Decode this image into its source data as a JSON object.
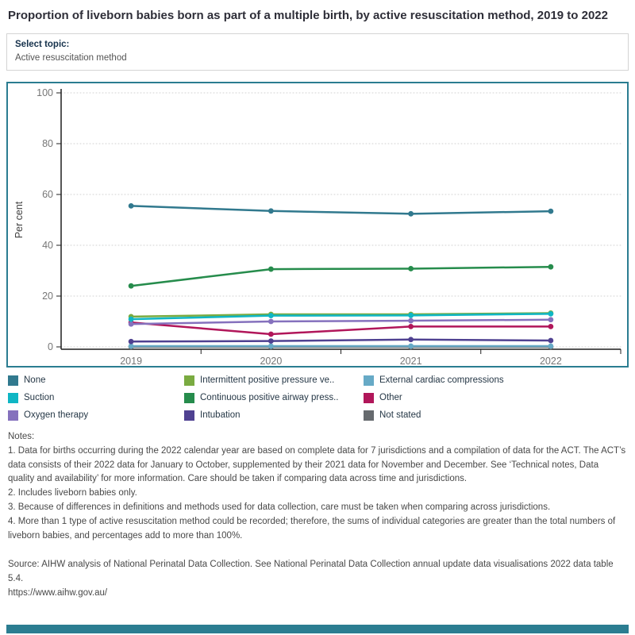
{
  "header": {
    "title": "Proportion of liveborn babies born as part of a multiple birth, by active resuscitation method, 2019 to 2022"
  },
  "topic_selector": {
    "label": "Select topic:",
    "value": "Active resuscitation method"
  },
  "chart_data": {
    "type": "line",
    "title": "",
    "categories": [
      "2019",
      "2020",
      "2021",
      "2022"
    ],
    "series": [
      {
        "name": "None",
        "color": "#31798e",
        "values": [
          55.5,
          53.5,
          52.4,
          53.4
        ]
      },
      {
        "name": "Suction",
        "color": "#0fb6c4",
        "values": [
          10.9,
          12.3,
          12.4,
          13.0
        ]
      },
      {
        "name": "Oxygen therapy",
        "color": "#8571bd",
        "values": [
          9.0,
          10.0,
          10.3,
          10.7
        ]
      },
      {
        "name": "Intermittent positive pressure ventilation",
        "color": "#7aab41",
        "values": [
          11.9,
          12.8,
          12.8,
          13.3
        ]
      },
      {
        "name": "Continuous positive airway pressure",
        "color": "#268c4c",
        "values": [
          24.0,
          30.6,
          30.8,
          31.5
        ]
      },
      {
        "name": "Intubation",
        "color": "#4f4191",
        "values": [
          2.1,
          2.3,
          2.9,
          2.5
        ]
      },
      {
        "name": "External cardiac compressions",
        "color": "#67aac6",
        "values": [
          0.3,
          0.3,
          0.3,
          0.3
        ]
      },
      {
        "name": "Other",
        "color": "#b1165a",
        "values": [
          9.6,
          5.0,
          8.0,
          8.0
        ]
      },
      {
        "name": "Not stated",
        "color": "#666a6e",
        "values": [
          0.05,
          0.05,
          0.05,
          0.05
        ]
      }
    ],
    "xlabel": "",
    "ylabel": "Per cent",
    "ylim": [
      0,
      100
    ],
    "yticks": [
      0,
      20,
      40,
      60,
      80,
      100
    ],
    "grid": "horizontal-dotted",
    "legend_position": "bottom"
  },
  "legend": {
    "items": [
      {
        "label": "None",
        "color": "#31798e"
      },
      {
        "label": "Intermittent positive pressure ve..",
        "color": "#7aab41"
      },
      {
        "label": "External cardiac compressions",
        "color": "#67aac6"
      },
      {
        "label": "Suction",
        "color": "#0fb6c4"
      },
      {
        "label": "Continuous positive airway press..",
        "color": "#268c4c"
      },
      {
        "label": "Other",
        "color": "#b1165a"
      },
      {
        "label": "Oxygen therapy",
        "color": "#8571bd"
      },
      {
        "label": "Intubation",
        "color": "#4f4191"
      },
      {
        "label": "Not stated",
        "color": "#666a6e"
      }
    ]
  },
  "notes": {
    "lines": [
      "Notes:",
      "1. Data for births occurring during the 2022 calendar year are based on complete data for 7 jurisdictions and a compilation of data for the ACT. The ACT’s data consists of their 2022 data for January to October, supplemented by their 2021 data for November and December. See ‘Technical notes, Data quality and availability’ for more information. Care should be taken if comparing data across time and jurisdictions.",
      "2. Includes liveborn babies only.",
      "3. Because of differences in definitions and methods used for data collection, care must be taken when comparing across jurisdictions.",
      "4. More than 1 type of active resuscitation method could be recorded; therefore, the sums of individual categories are greater than the total numbers of liveborn babies, and percentages add to more than 100%."
    ]
  },
  "source": {
    "text": "Source: AIHW analysis of National Perinatal Data Collection. See National Perinatal Data Collection annual update data visualisations 2022 data table 5.4.",
    "url": "https://www.aihw.gov.au/"
  },
  "colors": {
    "accent_teal": "#2b7d91",
    "axis_line": "#1f1f1f",
    "tick_label": "#767676",
    "gridline": "#d2d2d2"
  }
}
